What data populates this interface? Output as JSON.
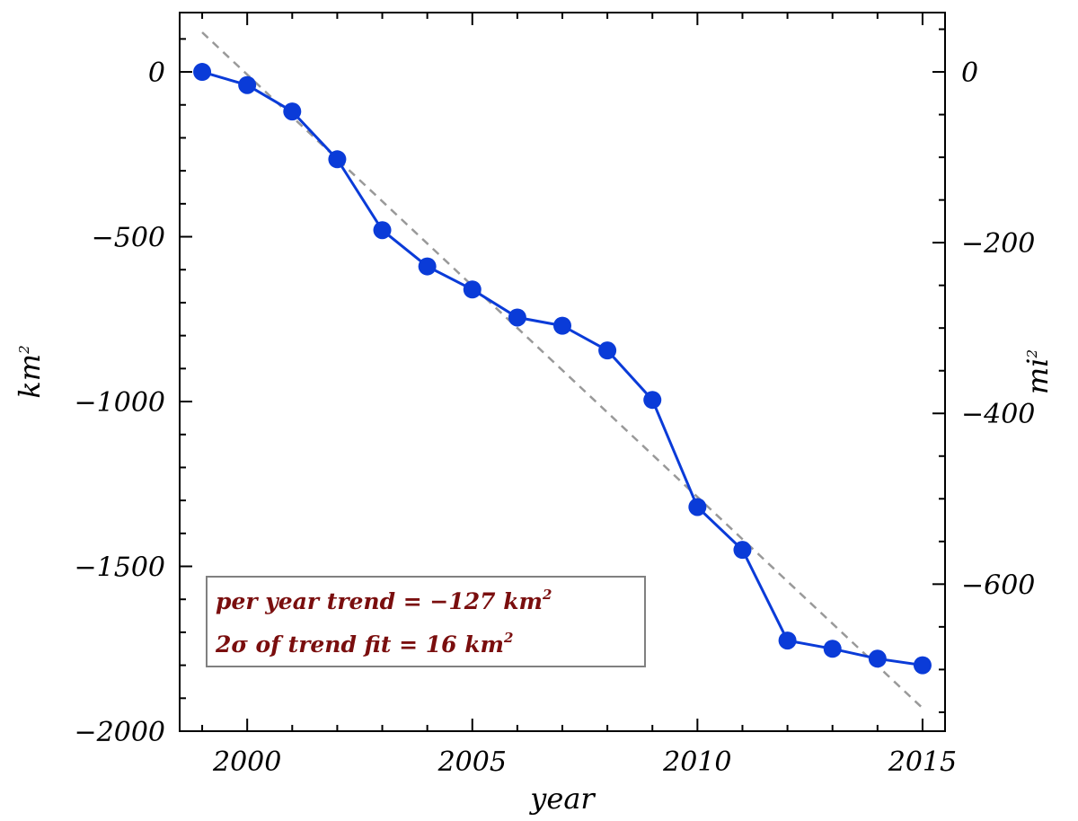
{
  "chart_data": {
    "type": "line",
    "xlabel": "year",
    "ylabel_left": "km",
    "ylabel_left_sup": "2",
    "ylabel_right": "mi",
    "ylabel_right_sup": "2",
    "xlim": [
      1998.5,
      2015.5
    ],
    "ylim": [
      -2000,
      180
    ],
    "y_right_lim": [
      -772.2,
      69.5
    ],
    "x_ticks": [
      2000,
      2005,
      2010,
      2015
    ],
    "x_ticks_minor": [
      1999,
      2001,
      2002,
      2003,
      2004,
      2006,
      2007,
      2008,
      2009,
      2011,
      2012,
      2013,
      2014
    ],
    "y_ticks_left": [
      0,
      -500,
      -1000,
      -1500,
      -2000
    ],
    "y_tick_labels_left": [
      "0",
      "−500",
      "−1000",
      "−1500",
      "−2000"
    ],
    "y_ticks_right": [
      0,
      -200,
      -400,
      -600
    ],
    "y_tick_labels_right": [
      "0",
      "−200",
      "−400",
      "−600"
    ],
    "x": [
      1999,
      2000,
      2001,
      2002,
      2003,
      2004,
      2005,
      2006,
      2007,
      2008,
      2009,
      2010,
      2011,
      2012,
      2013,
      2014,
      2015
    ],
    "series": [
      {
        "values": [
          0,
          -40,
          -120,
          -265,
          -480,
          -590,
          -660,
          -745,
          -770,
          -845,
          -995,
          -1320,
          -1450,
          -1725,
          -1750,
          -1780,
          -1800
        ],
        "color": "#0a3bd8",
        "marker": "circle"
      }
    ],
    "trend_line": {
      "x": [
        1999,
        2015
      ],
      "y": [
        120,
        -1930
      ],
      "color": "#999999",
      "style": "dashed"
    },
    "annotation": {
      "line1_text": "per year trend = −127 km",
      "line1_sup": "2",
      "line2_text": "2σ of trend fit = 16 km",
      "line2_sup": "2",
      "color": "#7a0e0e",
      "border_color": "#808080"
    },
    "grid": false
  }
}
